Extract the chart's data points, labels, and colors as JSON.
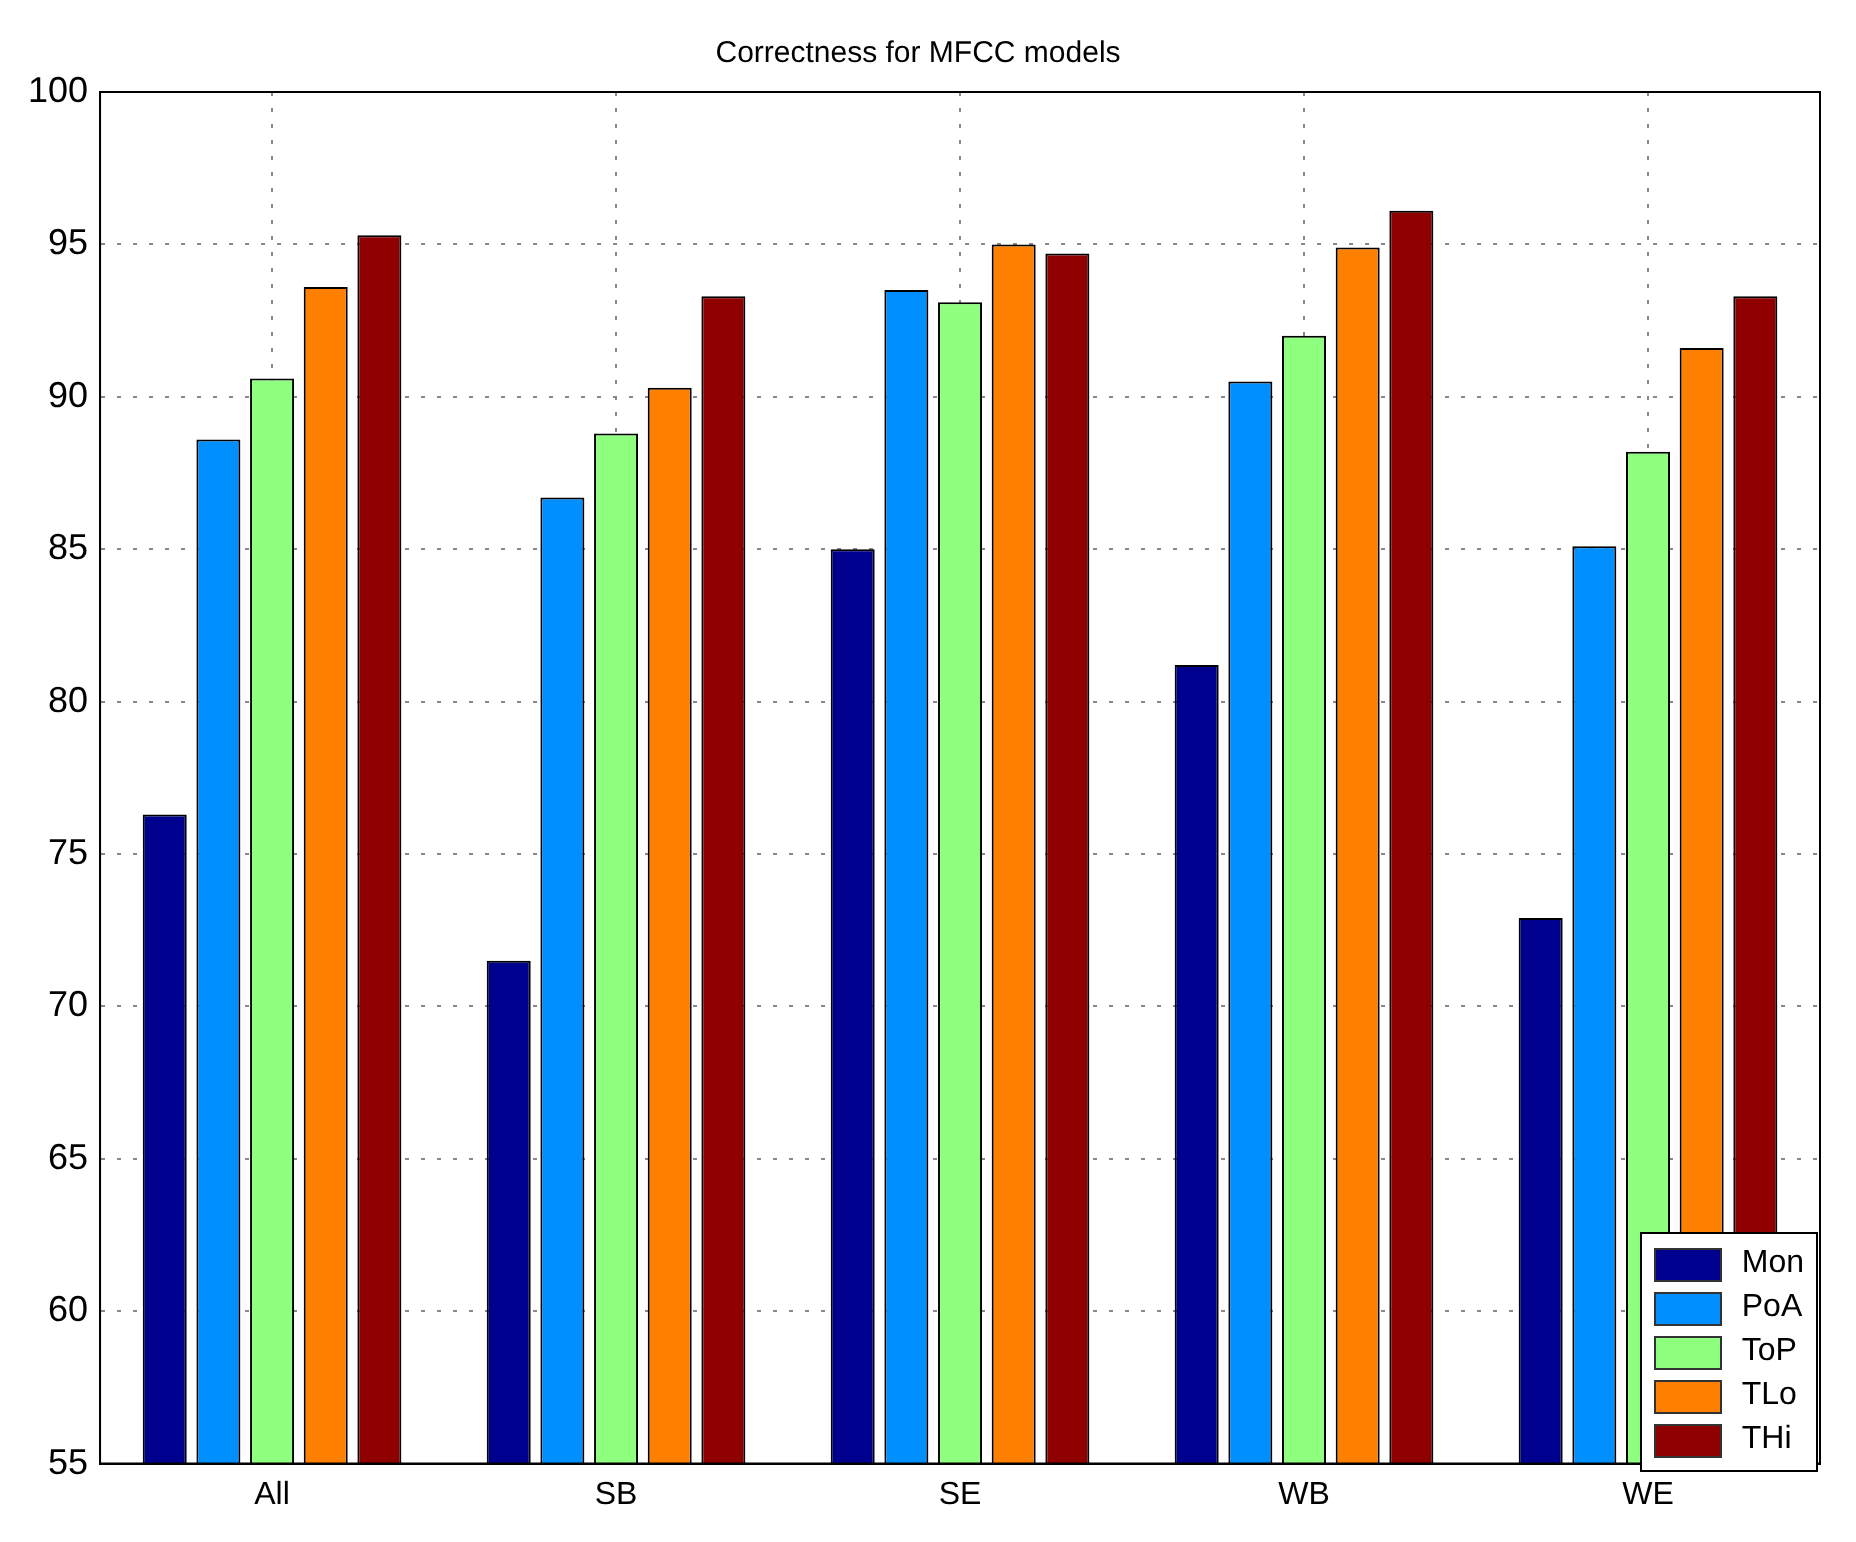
{
  "chart_data": {
    "type": "bar",
    "title": "Correctness for MFCC models",
    "categories": [
      "All",
      "SB",
      "SE",
      "WB",
      "WE"
    ],
    "series": [
      {
        "name": "Mon",
        "color": "#00008f",
        "values": [
          76.3,
          71.5,
          85.0,
          81.2,
          72.9
        ]
      },
      {
        "name": "PoA",
        "color": "#008fff",
        "values": [
          88.6,
          86.7,
          93.5,
          90.5,
          85.1
        ]
      },
      {
        "name": "ToP",
        "color": "#8fff7f",
        "values": [
          90.6,
          88.8,
          93.1,
          92.0,
          88.2
        ]
      },
      {
        "name": "TLo",
        "color": "#ff8000",
        "values": [
          93.6,
          90.3,
          95.0,
          94.9,
          91.6
        ]
      },
      {
        "name": "THi",
        "color": "#8f0000",
        "values": [
          95.3,
          93.3,
          94.7,
          96.1,
          93.3
        ]
      }
    ],
    "ylim": [
      55,
      100
    ],
    "yticks": [
      55,
      60,
      65,
      70,
      75,
      80,
      85,
      90,
      95,
      100
    ],
    "grid": true,
    "legend": "bottom right"
  }
}
